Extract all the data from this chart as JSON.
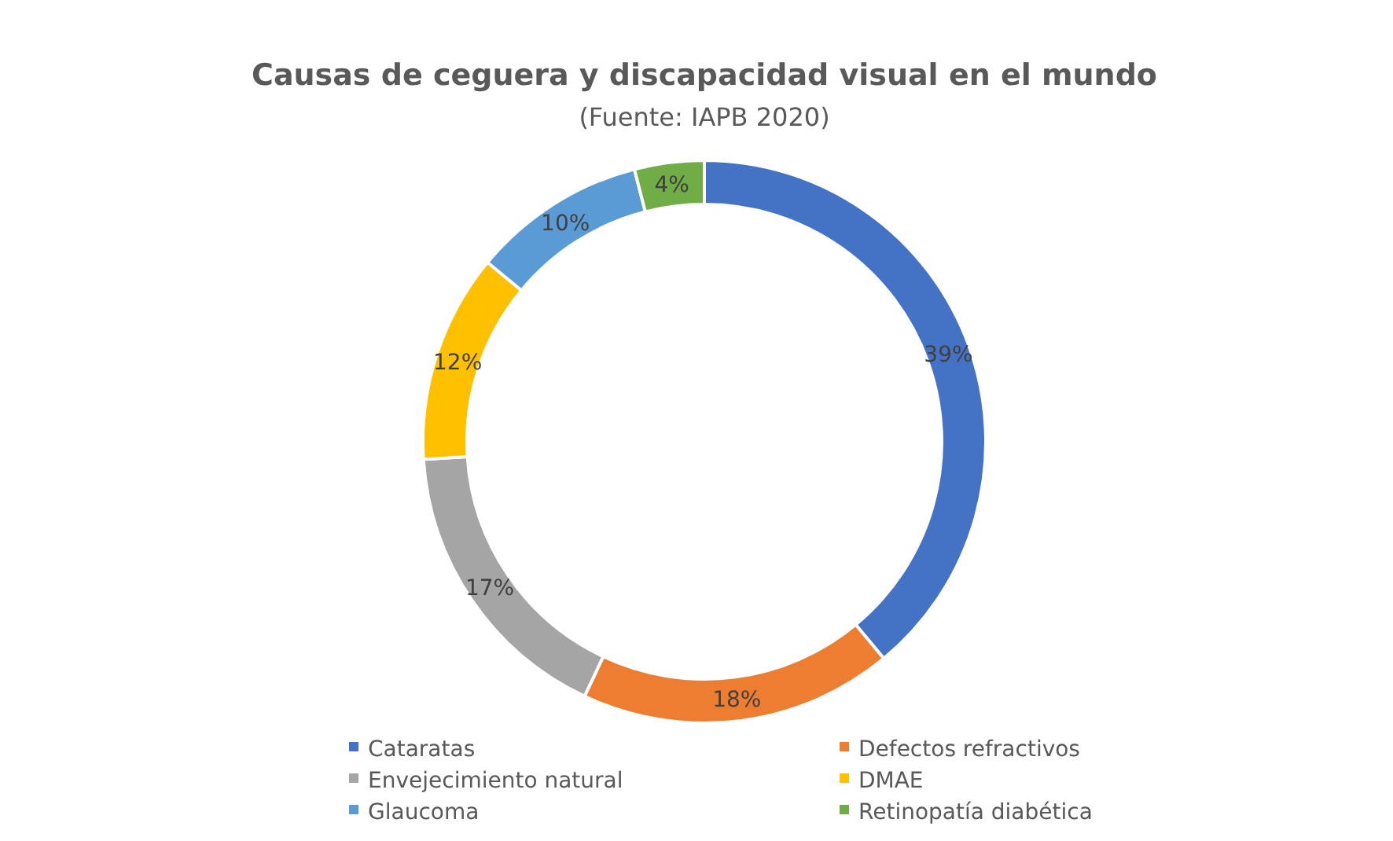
{
  "chart_data": {
    "type": "donut",
    "title": "Causas de ceguera y discapacidad visual en el mundo",
    "subtitle": "(Fuente: IAPB 2020)",
    "categories": [
      "Cataratas",
      "Defectos refractivos",
      "Envejecimiento natural",
      "DMAE",
      "Glaucoma",
      "Retinopatía diabética"
    ],
    "values": [
      39,
      18,
      17,
      12,
      10,
      4
    ],
    "value_labels": [
      "39%",
      "18%",
      "17%",
      "12%",
      "10%",
      "4%"
    ],
    "colors": [
      "#4472c4",
      "#ed7d31",
      "#a5a5a5",
      "#ffc000",
      "#5b9bd5",
      "#70ad47"
    ],
    "legend": "bottom"
  }
}
